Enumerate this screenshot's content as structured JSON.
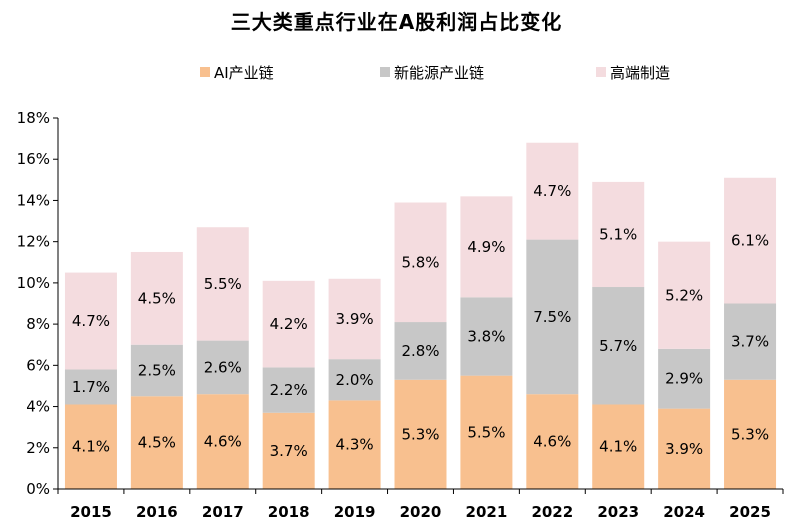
{
  "chart_data": {
    "type": "bar",
    "stacked": true,
    "title": "三大类重点行业在A股利润占比变化",
    "categories": [
      "2015",
      "2016",
      "2017",
      "2018",
      "2019",
      "2020",
      "2021",
      "2022",
      "2023",
      "2024",
      "2025"
    ],
    "series": [
      {
        "name": "AI产业链",
        "color": "#f8c08f",
        "values": [
          4.1,
          4.5,
          4.6,
          3.7,
          4.3,
          5.3,
          5.5,
          4.6,
          4.1,
          3.9,
          5.3
        ],
        "labels": [
          "4.1%",
          "4.5%",
          "4.6%",
          "3.7%",
          "4.3%",
          "5.3%",
          "5.5%",
          "4.6%",
          "4.1%",
          "3.9%",
          "5.3%"
        ]
      },
      {
        "name": "新能源产业链",
        "color": "#c7c7c7",
        "values": [
          1.7,
          2.5,
          2.6,
          2.2,
          2.0,
          2.8,
          3.8,
          7.5,
          5.7,
          2.9,
          3.7
        ],
        "labels": [
          "1.7%",
          "2.5%",
          "2.6%",
          "2.2%",
          "2.0%",
          "2.8%",
          "3.8%",
          "7.5%",
          "5.7%",
          "2.9%",
          "3.7%"
        ]
      },
      {
        "name": "高端制造",
        "color": "#f4dcdf",
        "values": [
          4.7,
          4.5,
          5.5,
          4.2,
          3.9,
          5.8,
          4.9,
          4.7,
          5.1,
          5.2,
          6.1
        ],
        "labels": [
          "4.7%",
          "4.5%",
          "5.5%",
          "4.2%",
          "3.9%",
          "5.8%",
          "4.9%",
          "4.7%",
          "5.1%",
          "5.2%",
          "6.1%"
        ]
      }
    ],
    "ylim": [
      0,
      18
    ],
    "yticks": [
      "0%",
      "2%",
      "4%",
      "6%",
      "8%",
      "10%",
      "12%",
      "14%",
      "16%",
      "18%"
    ],
    "legend_position": "top",
    "grid": false
  }
}
